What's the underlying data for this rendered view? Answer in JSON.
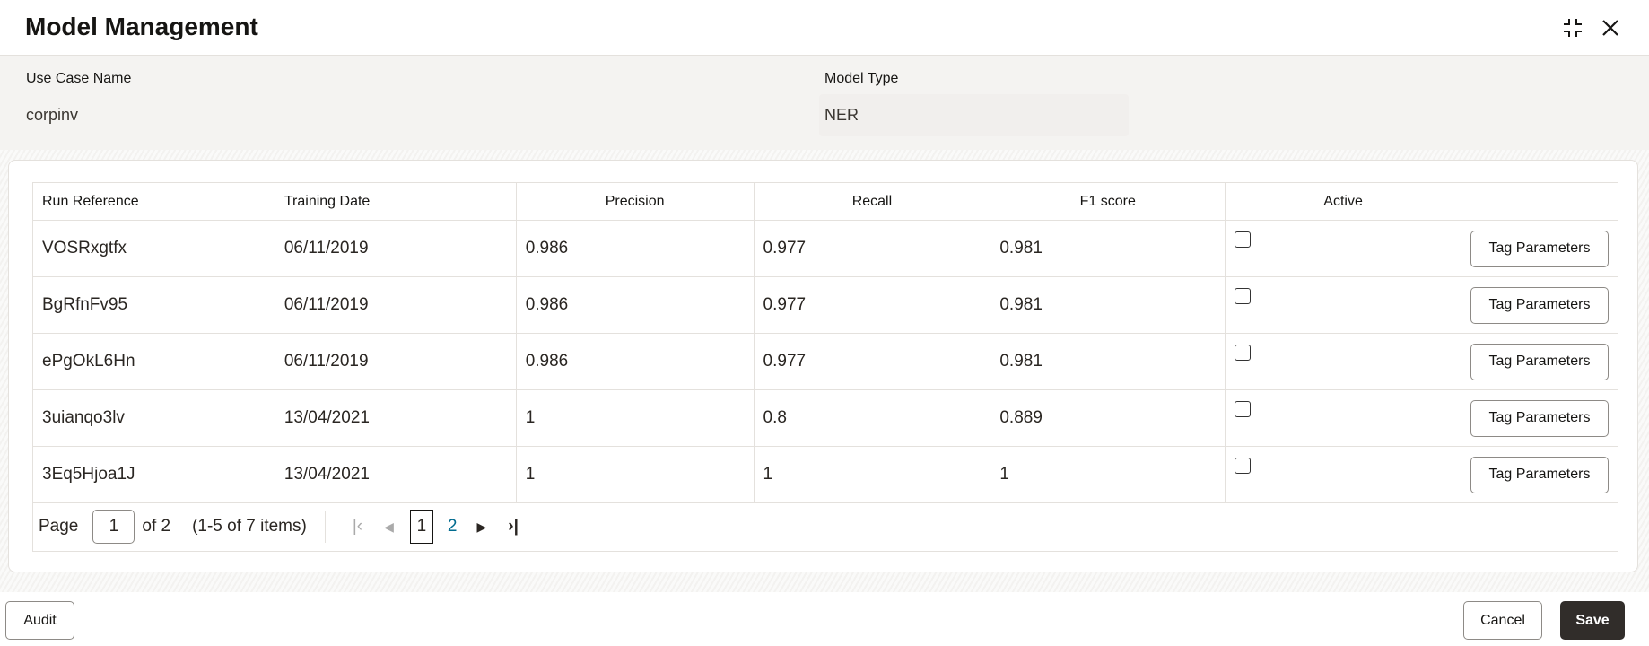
{
  "header": {
    "title": "Model Management",
    "restore_icon": "compress-icon",
    "close_icon": "close-icon"
  },
  "info": {
    "use_case_label": "Use Case Name",
    "use_case_value": "corpinv",
    "model_type_label": "Model Type",
    "model_type_value": "NER"
  },
  "table": {
    "columns": [
      "Run Reference",
      "Training Date",
      "Precision",
      "Recall",
      "F1 score",
      "Active",
      ""
    ],
    "rows": [
      {
        "run": "VOSRxgtfx",
        "date": "06/11/2019",
        "precision": "0.986",
        "recall": "0.977",
        "f1": "0.981",
        "active": false,
        "action": "Tag Parameters"
      },
      {
        "run": "BgRfnFv95",
        "date": "06/11/2019",
        "precision": "0.986",
        "recall": "0.977",
        "f1": "0.981",
        "active": false,
        "action": "Tag Parameters"
      },
      {
        "run": "ePgOkL6Hn",
        "date": "06/11/2019",
        "precision": "0.986",
        "recall": "0.977",
        "f1": "0.981",
        "active": false,
        "action": "Tag Parameters"
      },
      {
        "run": "3uianqo3lv",
        "date": "13/04/2021",
        "precision": "1",
        "recall": "0.8",
        "f1": "0.889",
        "active": false,
        "action": "Tag Parameters"
      },
      {
        "run": "3Eq5Hjoa1J",
        "date": "13/04/2021",
        "precision": "1",
        "recall": "1",
        "f1": "1",
        "active": false,
        "action": "Tag Parameters"
      }
    ]
  },
  "pagination": {
    "page_label": "Page",
    "page_value": "1",
    "of_label": "of 2",
    "items_label": "(1-5 of 7 items)",
    "pages": [
      "1",
      "2"
    ],
    "link_color": "#006b8f"
  },
  "footer": {
    "audit": "Audit",
    "cancel": "Cancel",
    "save": "Save",
    "save_color": "#312d2a"
  }
}
